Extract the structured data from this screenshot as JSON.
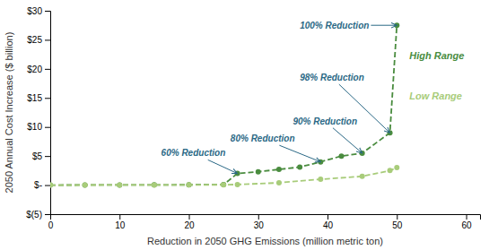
{
  "chart_data": {
    "type": "line",
    "x_label": "Reduction in 2050 GHG Emissions (million metric ton)",
    "y_label": "2050 Annual Cost Increase ($ billion)",
    "series": [
      {
        "name": "High Range",
        "color": "#4a8c3f",
        "marker": "circle",
        "line_style": "dashed",
        "x": [
          0,
          5,
          10,
          15,
          20,
          25,
          27,
          30,
          33,
          36,
          39,
          42,
          45,
          49,
          50
        ],
        "values": [
          0.0,
          0.02,
          0.03,
          0.04,
          0.05,
          0.07,
          2.0,
          2.3,
          2.7,
          3.1,
          4.0,
          5.0,
          5.5,
          9.0,
          27.5
        ]
      },
      {
        "name": "Low Range",
        "color": "#a8cc7a",
        "marker": "circle",
        "line_style": "dashed",
        "x": [
          0,
          5,
          10,
          15,
          20,
          25,
          27,
          33,
          39,
          45,
          49,
          50
        ],
        "values": [
          0.0,
          0.01,
          0.02,
          0.03,
          0.04,
          0.05,
          0.1,
          0.4,
          1.0,
          1.5,
          2.5,
          3.0
        ]
      }
    ],
    "annotations": [
      {
        "text": "60% Reduction",
        "x": 27,
        "y": 2.0,
        "text_x": 16,
        "text_y": 5.5,
        "color": "#2b6986"
      },
      {
        "text": "80% Reduction",
        "x": 39,
        "y": 4.0,
        "text_x": 26,
        "text_y": 8.0,
        "color": "#2b6986"
      },
      {
        "text": "90% Reduction",
        "x": 45,
        "y": 5.5,
        "text_x": 35,
        "text_y": 11.0,
        "color": "#2b6986"
      },
      {
        "text": "98% Reduction",
        "x": 49,
        "y": 9.0,
        "text_x": 36,
        "text_y": 18.5,
        "color": "#2b6986"
      },
      {
        "text": "100% Reduction",
        "x": 50,
        "y": 27.5,
        "text_x": 36,
        "text_y": 27.5,
        "color": "#2b6986"
      }
    ],
    "legend": "right",
    "grid": false,
    "xlim": [
      0,
      62
    ],
    "ylim": [
      -5,
      30
    ],
    "xticks": [
      0,
      10,
      20,
      30,
      40,
      50,
      60
    ],
    "yticks": [
      {
        "value": -5,
        "label": "$(5)"
      },
      {
        "value": 0,
        "label": "$-"
      },
      {
        "value": 5,
        "label": "$5"
      },
      {
        "value": 10,
        "label": "$10"
      },
      {
        "value": 15,
        "label": "$15"
      },
      {
        "value": 20,
        "label": "$20"
      },
      {
        "value": 25,
        "label": "$25"
      },
      {
        "value": 30,
        "label": "$30"
      }
    ]
  }
}
